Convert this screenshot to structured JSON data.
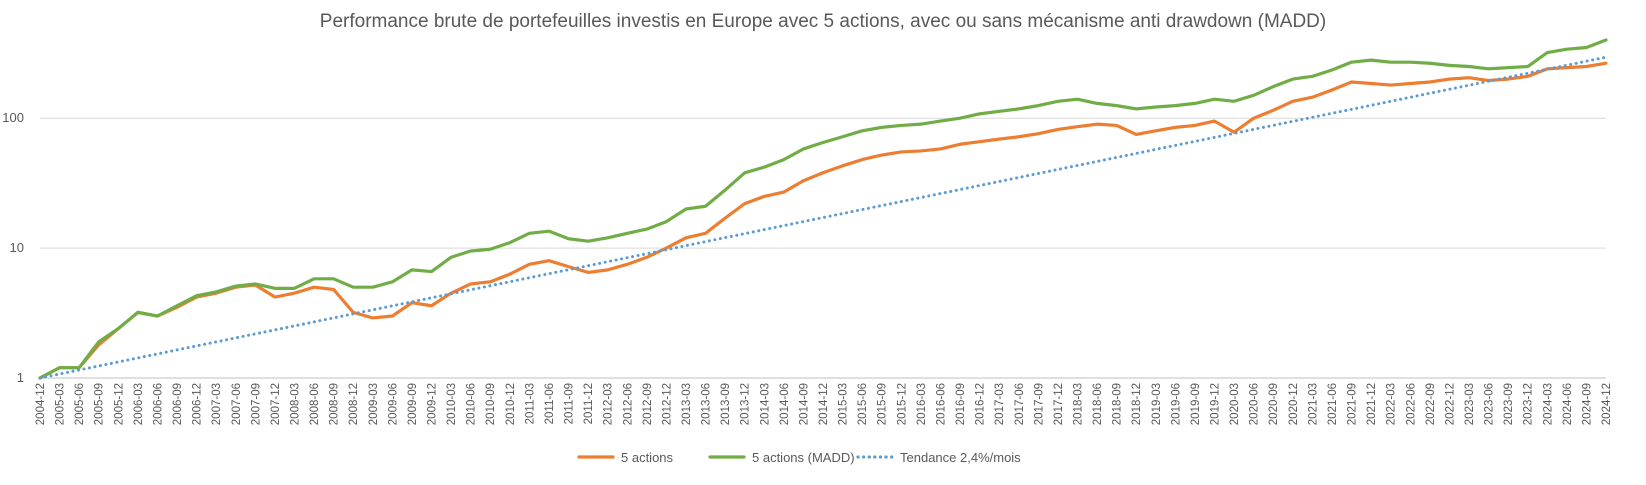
{
  "chart_data": {
    "type": "line",
    "title": "Performance brute de portefeuilles investis en Europe avec 5 actions, avec ou sans mécanisme anti drawdown (MADD)",
    "xlabel": "",
    "ylabel": "",
    "y_scale": "log",
    "ylim": [
      1,
      400
    ],
    "yticks": [
      1,
      10,
      100
    ],
    "ytick_labels": [
      "1",
      "10",
      "100"
    ],
    "grid": true,
    "legend_position": "bottom",
    "x_start": "2004-12",
    "x_end": "2024-12",
    "xtick_step_months": 3,
    "xtick_labels": [
      "2004-12",
      "2005-03",
      "2005-06",
      "2005-09",
      "2005-12",
      "2006-03",
      "2006-06",
      "2006-09",
      "2006-12",
      "2007-03",
      "2007-06",
      "2007-09",
      "2007-12",
      "2008-03",
      "2008-06",
      "2008-09",
      "2008-12",
      "2009-03",
      "2009-06",
      "2009-09",
      "2009-12",
      "2010-03",
      "2010-06",
      "2010-09",
      "2010-12",
      "2011-03",
      "2011-06",
      "2011-09",
      "2011-12",
      "2012-03",
      "2012-06",
      "2012-09",
      "2012-12",
      "2013-03",
      "2013-06",
      "2013-09",
      "2013-12",
      "2014-03",
      "2014-06",
      "2014-09",
      "2014-12",
      "2015-03",
      "2015-06",
      "2015-09",
      "2015-12",
      "2016-03",
      "2016-06",
      "2016-09",
      "2016-12",
      "2017-03",
      "2017-06",
      "2017-09",
      "2017-12",
      "2018-03",
      "2018-06",
      "2018-09",
      "2018-12",
      "2019-03",
      "2019-06",
      "2019-09",
      "2019-12",
      "2020-03",
      "2020-06",
      "2020-09",
      "2020-12",
      "2021-03",
      "2021-06",
      "2021-09",
      "2021-12",
      "2022-03",
      "2022-06",
      "2022-09",
      "2022-12",
      "2023-03",
      "2023-06",
      "2023-09",
      "2023-12",
      "2024-03",
      "2024-06",
      "2024-09",
      "2024-12"
    ],
    "series": [
      {
        "name": "5 actions",
        "color": "#ED7D31",
        "style": "solid",
        "x": [
          "2004-12",
          "2005-03",
          "2005-06",
          "2005-09",
          "2005-12",
          "2006-03",
          "2006-06",
          "2006-09",
          "2006-12",
          "2007-03",
          "2007-06",
          "2007-09",
          "2007-12",
          "2008-03",
          "2008-06",
          "2008-09",
          "2008-12",
          "2009-03",
          "2009-06",
          "2009-09",
          "2009-12",
          "2010-03",
          "2010-06",
          "2010-09",
          "2010-12",
          "2011-03",
          "2011-06",
          "2011-09",
          "2011-12",
          "2012-03",
          "2012-06",
          "2012-09",
          "2012-12",
          "2013-03",
          "2013-06",
          "2013-09",
          "2013-12",
          "2014-03",
          "2014-06",
          "2014-09",
          "2014-12",
          "2015-03",
          "2015-06",
          "2015-09",
          "2015-12",
          "2016-03",
          "2016-06",
          "2016-09",
          "2016-12",
          "2017-03",
          "2017-06",
          "2017-09",
          "2017-12",
          "2018-03",
          "2018-06",
          "2018-09",
          "2018-12",
          "2019-03",
          "2019-06",
          "2019-09",
          "2019-12",
          "2020-03",
          "2020-06",
          "2020-09",
          "2020-12",
          "2021-03",
          "2021-06",
          "2021-09",
          "2021-12",
          "2022-03",
          "2022-06",
          "2022-09",
          "2022-12",
          "2023-03",
          "2023-06",
          "2023-09",
          "2023-12",
          "2024-03",
          "2024-06",
          "2024-09",
          "2024-12"
        ],
        "values": [
          1.0,
          1.2,
          1.2,
          1.8,
          2.4,
          3.2,
          3.0,
          3.5,
          4.2,
          4.5,
          5.0,
          5.2,
          4.2,
          4.5,
          5.0,
          4.8,
          3.2,
          2.9,
          3.0,
          3.8,
          3.6,
          4.5,
          5.3,
          5.5,
          6.3,
          7.5,
          8.0,
          7.2,
          6.5,
          6.8,
          7.5,
          8.5,
          10.0,
          12.0,
          13.0,
          17.0,
          22.0,
          25.0,
          27.0,
          33.0,
          38.0,
          43.0,
          48.0,
          52.0,
          55.0,
          56.0,
          58.0,
          63.0,
          66.0,
          69.0,
          72.0,
          76.0,
          82.0,
          86.0,
          90.0,
          88.0,
          75.0,
          80.0,
          85.0,
          88.0,
          95.0,
          78.0,
          100.0,
          115.0,
          135.0,
          145.0,
          165.0,
          190.0,
          185.0,
          180.0,
          185.0,
          190.0,
          200.0,
          205.0,
          195.0,
          200.0,
          210.0,
          240.0,
          245.0,
          250.0,
          265.0
        ]
      },
      {
        "name": "5 actions (MADD)",
        "color": "#70AD47",
        "style": "solid",
        "x": [
          "2004-12",
          "2005-03",
          "2005-06",
          "2005-09",
          "2005-12",
          "2006-03",
          "2006-06",
          "2006-09",
          "2006-12",
          "2007-03",
          "2007-06",
          "2007-09",
          "2007-12",
          "2008-03",
          "2008-06",
          "2008-09",
          "2008-12",
          "2009-03",
          "2009-06",
          "2009-09",
          "2009-12",
          "2010-03",
          "2010-06",
          "2010-09",
          "2010-12",
          "2011-03",
          "2011-06",
          "2011-09",
          "2011-12",
          "2012-03",
          "2012-06",
          "2012-09",
          "2012-12",
          "2013-03",
          "2013-06",
          "2013-09",
          "2013-12",
          "2014-03",
          "2014-06",
          "2014-09",
          "2014-12",
          "2015-03",
          "2015-06",
          "2015-09",
          "2015-12",
          "2016-03",
          "2016-06",
          "2016-09",
          "2016-12",
          "2017-03",
          "2017-06",
          "2017-09",
          "2017-12",
          "2018-03",
          "2018-06",
          "2018-09",
          "2018-12",
          "2019-03",
          "2019-06",
          "2019-09",
          "2019-12",
          "2020-03",
          "2020-06",
          "2020-09",
          "2020-12",
          "2021-03",
          "2021-06",
          "2021-09",
          "2021-12",
          "2022-03",
          "2022-06",
          "2022-09",
          "2022-12",
          "2023-03",
          "2023-06",
          "2023-09",
          "2023-12",
          "2024-03",
          "2024-06",
          "2024-09",
          "2024-12"
        ],
        "values": [
          1.0,
          1.2,
          1.2,
          1.9,
          2.4,
          3.2,
          3.0,
          3.6,
          4.3,
          4.6,
          5.1,
          5.3,
          4.9,
          4.9,
          5.8,
          5.8,
          5.0,
          5.0,
          5.5,
          6.8,
          6.6,
          8.5,
          9.5,
          9.8,
          11.0,
          13.0,
          13.5,
          11.8,
          11.3,
          12.0,
          13.0,
          14.0,
          16.0,
          20.0,
          21.0,
          28.0,
          38.0,
          42.0,
          48.0,
          58.0,
          65.0,
          72.0,
          80.0,
          85.0,
          88.0,
          90.0,
          95.0,
          100.0,
          108.0,
          113.0,
          118.0,
          125.0,
          135.0,
          140.0,
          130.0,
          125.0,
          118.0,
          122.0,
          125.0,
          130.0,
          140.0,
          135.0,
          150.0,
          175.0,
          200.0,
          210.0,
          235.0,
          270.0,
          280.0,
          270.0,
          270.0,
          265.0,
          255.0,
          250.0,
          240.0,
          245.0,
          250.0,
          320.0,
          340.0,
          350.0,
          400.0
        ]
      },
      {
        "name": "Tendance 2,4%/mois",
        "color": "#5B9BD5",
        "style": "dotted",
        "x": [
          "2004-12",
          "2024-12"
        ],
        "values": [
          1.0,
          295.0
        ]
      }
    ]
  }
}
